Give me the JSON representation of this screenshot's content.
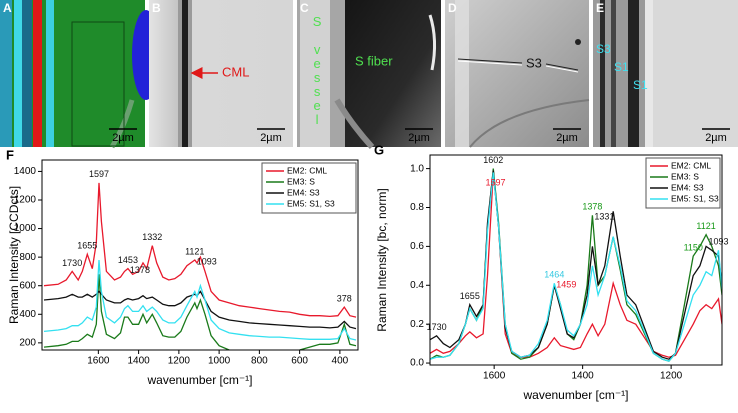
{
  "image_panels": [
    {
      "label": "A",
      "annotations": [],
      "scale_bar": "2µm"
    },
    {
      "label": "B",
      "annotations": [
        "CML"
      ],
      "scale_bar": "2µm"
    },
    {
      "label": "C",
      "annotations": [
        "S vessel",
        "S fiber"
      ],
      "scale_bar": "2µm"
    },
    {
      "label": "D",
      "annotations": [
        "S3"
      ],
      "scale_bar": "2µm"
    },
    {
      "label": "E",
      "annotations": [
        "S3",
        "S1",
        "S1"
      ],
      "scale_bar": "2µm"
    }
  ],
  "chart_data": [
    {
      "type": "line",
      "panel_label": "F",
      "x_label": "wavenumber [cm⁻¹]",
      "y_label": "Raman Intensity [CCDcts]",
      "xlim": [
        1880,
        310
      ],
      "xticks": [
        1600,
        1400,
        1200,
        1000,
        800,
        600,
        400
      ],
      "ylim": [
        150,
        1480
      ],
      "yticks": [
        200,
        400,
        600,
        800,
        1000,
        1200,
        1400
      ],
      "legend": "upper right",
      "x": [
        1870,
        1800,
        1760,
        1730,
        1700,
        1680,
        1655,
        1630,
        1610,
        1597,
        1585,
        1560,
        1520,
        1490,
        1470,
        1453,
        1430,
        1400,
        1378,
        1360,
        1332,
        1310,
        1280,
        1250,
        1220,
        1190,
        1160,
        1121,
        1110,
        1093,
        1070,
        1040,
        1000,
        950,
        900,
        850,
        800,
        750,
        700,
        650,
        600,
        550,
        500,
        450,
        410,
        378,
        350,
        320
      ],
      "series": [
        {
          "name": "EM2: CML",
          "color": "#e8192c",
          "values": [
            600,
            610,
            640,
            700,
            640,
            700,
            820,
            720,
            900,
            1320,
            1050,
            700,
            640,
            660,
            700,
            720,
            680,
            700,
            760,
            720,
            880,
            760,
            660,
            640,
            650,
            680,
            740,
            780,
            760,
            800,
            700,
            560,
            500,
            480,
            460,
            450,
            440,
            430,
            420,
            415,
            400,
            390,
            390,
            385,
            390,
            450,
            390,
            380
          ]
        },
        {
          "name": "EM3: S",
          "color": "#1a7a1a",
          "values": [
            170,
            180,
            190,
            210,
            210,
            230,
            260,
            240,
            330,
            680,
            420,
            260,
            230,
            270,
            380,
            380,
            330,
            330,
            400,
            340,
            400,
            340,
            250,
            240,
            240,
            280,
            380,
            480,
            440,
            500,
            400,
            250,
            180,
            150,
            140,
            135,
            130,
            130,
            135,
            140,
            150,
            170,
            190,
            190,
            200,
            330,
            190,
            180
          ]
        },
        {
          "name": "EM4: S3",
          "color": "#111111",
          "values": [
            500,
            510,
            520,
            540,
            520,
            520,
            540,
            520,
            540,
            560,
            540,
            500,
            480,
            480,
            500,
            510,
            500,
            510,
            530,
            510,
            520,
            500,
            470,
            460,
            460,
            480,
            520,
            540,
            530,
            560,
            500,
            420,
            380,
            360,
            350,
            340,
            335,
            330,
            325,
            320,
            315,
            310,
            310,
            305,
            310,
            350,
            310,
            300
          ]
        },
        {
          "name": "EM5: S1, S3",
          "color": "#33e0f0",
          "values": [
            280,
            290,
            300,
            320,
            320,
            340,
            380,
            360,
            450,
            780,
            560,
            380,
            340,
            380,
            440,
            460,
            420,
            420,
            460,
            420,
            450,
            420,
            360,
            340,
            340,
            380,
            460,
            560,
            520,
            600,
            500,
            360,
            300,
            270,
            260,
            250,
            245,
            240,
            240,
            235,
            230,
            225,
            225,
            225,
            230,
            300,
            230,
            220
          ]
        }
      ],
      "peak_labels": [
        {
          "value": 1730,
          "color": "#111111"
        },
        {
          "value": 1655,
          "color": "#111111"
        },
        {
          "value": 1597,
          "color": "#111111"
        },
        {
          "value": 1453,
          "color": "#111111"
        },
        {
          "value": 1378,
          "color": "#111111"
        },
        {
          "value": 1332,
          "color": "#111111"
        },
        {
          "value": 1121,
          "color": "#111111"
        },
        {
          "value": 1093,
          "color": "#111111"
        },
        {
          "value": 378,
          "color": "#111111"
        }
      ]
    },
    {
      "type": "line",
      "panel_label": "G",
      "x_label": "wavenumber [cm⁻¹]",
      "y_label": "Raman Intensity [bc, norm]",
      "xlim": [
        1745,
        1085
      ],
      "xticks": [
        1600,
        1400,
        1200
      ],
      "ylim": [
        -0.01,
        1.07
      ],
      "yticks": [
        {
          "value": 0,
          "label": "0.0"
        },
        0.2,
        0.4,
        0.6,
        0.8,
        {
          "value": 1,
          "label": "1.0"
        }
      ],
      "legend": "upper right",
      "x": [
        1745,
        1730,
        1715,
        1700,
        1680,
        1665,
        1655,
        1640,
        1625,
        1615,
        1602,
        1590,
        1575,
        1560,
        1540,
        1520,
        1500,
        1480,
        1464,
        1450,
        1435,
        1420,
        1405,
        1390,
        1378,
        1365,
        1350,
        1331,
        1315,
        1300,
        1280,
        1260,
        1240,
        1220,
        1205,
        1190,
        1170,
        1150,
        1135,
        1121,
        1108,
        1093,
        1085
      ],
      "series": [
        {
          "name": "EM2: CML",
          "color": "#e8192c",
          "values": [
            0.05,
            0.07,
            0.05,
            0.06,
            0.1,
            0.14,
            0.16,
            0.13,
            0.15,
            0.45,
            0.98,
            0.7,
            0.15,
            0.05,
            0.03,
            0.03,
            0.05,
            0.08,
            0.13,
            0.09,
            0.08,
            0.07,
            0.08,
            0.15,
            0.2,
            0.14,
            0.2,
            0.41,
            0.3,
            0.22,
            0.2,
            0.13,
            0.06,
            0.04,
            0.03,
            0.04,
            0.12,
            0.2,
            0.27,
            0.3,
            0.28,
            0.33,
            0.2
          ]
        },
        {
          "name": "EM3: S",
          "color": "#1a7a1a",
          "values": [
            0.02,
            0.04,
            0.03,
            0.04,
            0.1,
            0.2,
            0.28,
            0.22,
            0.3,
            0.7,
            1.0,
            0.72,
            0.2,
            0.05,
            0.02,
            0.03,
            0.08,
            0.2,
            0.4,
            0.3,
            0.15,
            0.12,
            0.2,
            0.4,
            0.76,
            0.4,
            0.45,
            0.65,
            0.48,
            0.3,
            0.25,
            0.15,
            0.05,
            0.02,
            0.01,
            0.05,
            0.3,
            0.55,
            0.6,
            0.66,
            0.6,
            0.5,
            0.35
          ]
        },
        {
          "name": "EM4: S3",
          "color": "#111111",
          "values": [
            0.12,
            0.14,
            0.1,
            0.08,
            0.12,
            0.2,
            0.3,
            0.24,
            0.3,
            0.72,
            0.99,
            0.7,
            0.18,
            0.06,
            0.03,
            0.04,
            0.08,
            0.2,
            0.4,
            0.28,
            0.15,
            0.13,
            0.2,
            0.35,
            0.6,
            0.4,
            0.5,
            0.78,
            0.55,
            0.35,
            0.3,
            0.18,
            0.06,
            0.03,
            0.02,
            0.05,
            0.25,
            0.45,
            0.5,
            0.6,
            0.58,
            0.55,
            0.4
          ]
        },
        {
          "name": "EM5: S1, S3",
          "color": "#33e0f0",
          "values": [
            0.02,
            0.03,
            0.03,
            0.04,
            0.1,
            0.2,
            0.28,
            0.22,
            0.28,
            0.68,
            0.98,
            0.7,
            0.2,
            0.06,
            0.03,
            0.04,
            0.1,
            0.22,
            0.41,
            0.3,
            0.17,
            0.14,
            0.2,
            0.3,
            0.5,
            0.35,
            0.45,
            0.65,
            0.5,
            0.32,
            0.27,
            0.16,
            0.05,
            0.02,
            0.01,
            0.05,
            0.2,
            0.35,
            0.4,
            0.47,
            0.45,
            0.58,
            0.38
          ]
        }
      ],
      "peak_labels": [
        {
          "value": 1730,
          "color": "#111111"
        },
        {
          "value": 1655,
          "color": "#111111"
        },
        {
          "value": 1602,
          "color": "#111111"
        },
        {
          "value": 1597,
          "color": "#e8192c"
        },
        {
          "value": 1464,
          "color": "#33c8e0"
        },
        {
          "value": 1459,
          "color": "#e8192c"
        },
        {
          "value": 1378,
          "color": "#1a9a1a"
        },
        {
          "value": 1331,
          "color": "#111111"
        },
        {
          "value": 1150,
          "color": "#1a9a1a"
        },
        {
          "value": 1121,
          "color": "#1a9a1a"
        },
        {
          "value": 1093,
          "color": "#111111"
        }
      ]
    }
  ]
}
